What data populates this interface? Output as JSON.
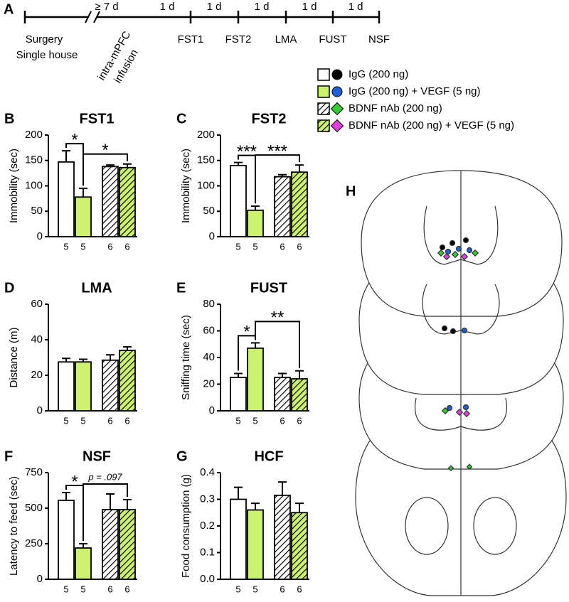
{
  "panels": {
    "a": "A",
    "h": "H"
  },
  "timeline": {
    "interval_labels": [
      "≥ 7 d",
      "1 d",
      "1 d",
      "1 d",
      "1 d",
      "1 d"
    ],
    "start_labels": [
      "Surgery",
      "Single house"
    ],
    "infusion_label": [
      "intra-mPFC",
      "infusion"
    ],
    "test_labels": [
      "FST1",
      "FST2",
      "LMA",
      "FUST",
      "NSF"
    ]
  },
  "groups": [
    {
      "name": "IgG  (200 ng)",
      "color": "#ffffff",
      "hatch": false,
      "marker": "circle",
      "marker_color": "#000000"
    },
    {
      "name": "IgG (200 ng) + VEGF (5 ng)",
      "color": "#ccf26e",
      "hatch": false,
      "marker": "circle",
      "marker_color": "#1f5fd6"
    },
    {
      "name": "BDNF nAb (200 ng)",
      "color": "#ffffff",
      "hatch": true,
      "marker": "diamond",
      "marker_color": "#33cc33"
    },
    {
      "name": "BDNF nAb (200 ng) + VEGF (5 ng)",
      "color": "#ccf26e",
      "hatch": true,
      "marker": "diamond",
      "marker_color": "#e040e0"
    }
  ],
  "chart_data": [
    {
      "type": "bar",
      "panel": "B",
      "title": "FST1",
      "y_label": "Immobility (sec)",
      "categories": [
        "5",
        "5",
        "6",
        "6"
      ],
      "values": [
        147,
        78,
        138,
        136
      ],
      "errors": [
        22,
        17,
        3,
        7
      ],
      "ylim": [
        0,
        200
      ],
      "yticks": [
        0,
        50,
        100,
        150,
        200
      ],
      "annotations": [
        "*",
        "*"
      ]
    },
    {
      "type": "bar",
      "panel": "C",
      "title": "FST2",
      "y_label": "Immobility (sec)",
      "categories": [
        "5",
        "5",
        "6",
        "6"
      ],
      "values": [
        140,
        52,
        118,
        127
      ],
      "errors": [
        6,
        8,
        4,
        14
      ],
      "ylim": [
        0,
        200
      ],
      "yticks": [
        0,
        50,
        100,
        150,
        200
      ],
      "annotations": [
        "***",
        "***"
      ]
    },
    {
      "type": "bar",
      "panel": "D",
      "title": "LMA",
      "y_label": "Distance (m)",
      "categories": [
        "5",
        "5",
        "6",
        "6"
      ],
      "values": [
        27.5,
        27.5,
        28.5,
        34
      ],
      "errors": [
        2,
        1.5,
        3,
        2
      ],
      "ylim": [
        0,
        60
      ],
      "yticks": [
        0,
        20,
        40,
        60
      ],
      "annotations": []
    },
    {
      "type": "bar",
      "panel": "E",
      "title": "FUST",
      "y_label": "Sniffing time (sec)",
      "categories": [
        "5",
        "5",
        "6",
        "6"
      ],
      "values": [
        25,
        47,
        25,
        24
      ],
      "errors": [
        3,
        4,
        3,
        6
      ],
      "ylim": [
        0,
        80
      ],
      "yticks": [
        0,
        20,
        40,
        60,
        80
      ],
      "annotations": [
        "*",
        "**"
      ]
    },
    {
      "type": "bar",
      "panel": "F",
      "title": "NSF",
      "y_label": "Latency to feed (sec)",
      "categories": [
        "5",
        "5",
        "6",
        "6"
      ],
      "values": [
        555,
        220,
        490,
        490
      ],
      "errors": [
        55,
        30,
        110,
        70
      ],
      "ylim": [
        0,
        750
      ],
      "yticks": [
        0,
        250,
        500,
        750
      ],
      "annotations": [
        "*",
        "p = .097"
      ]
    },
    {
      "type": "bar",
      "panel": "G",
      "title": "HCF",
      "y_label": "Food consumption (g)",
      "categories": [
        "5",
        "5",
        "6",
        "6"
      ],
      "values": [
        0.3,
        0.26,
        0.315,
        0.25
      ],
      "errors": [
        0.045,
        0.025,
        0.05,
        0.035
      ],
      "ylim": [
        0,
        0.4
      ],
      "yticks": [
        {
          "value": 0,
          "label": "0.0"
        },
        0.1,
        0.2,
        0.3,
        0.4
      ],
      "annotations": []
    }
  ]
}
